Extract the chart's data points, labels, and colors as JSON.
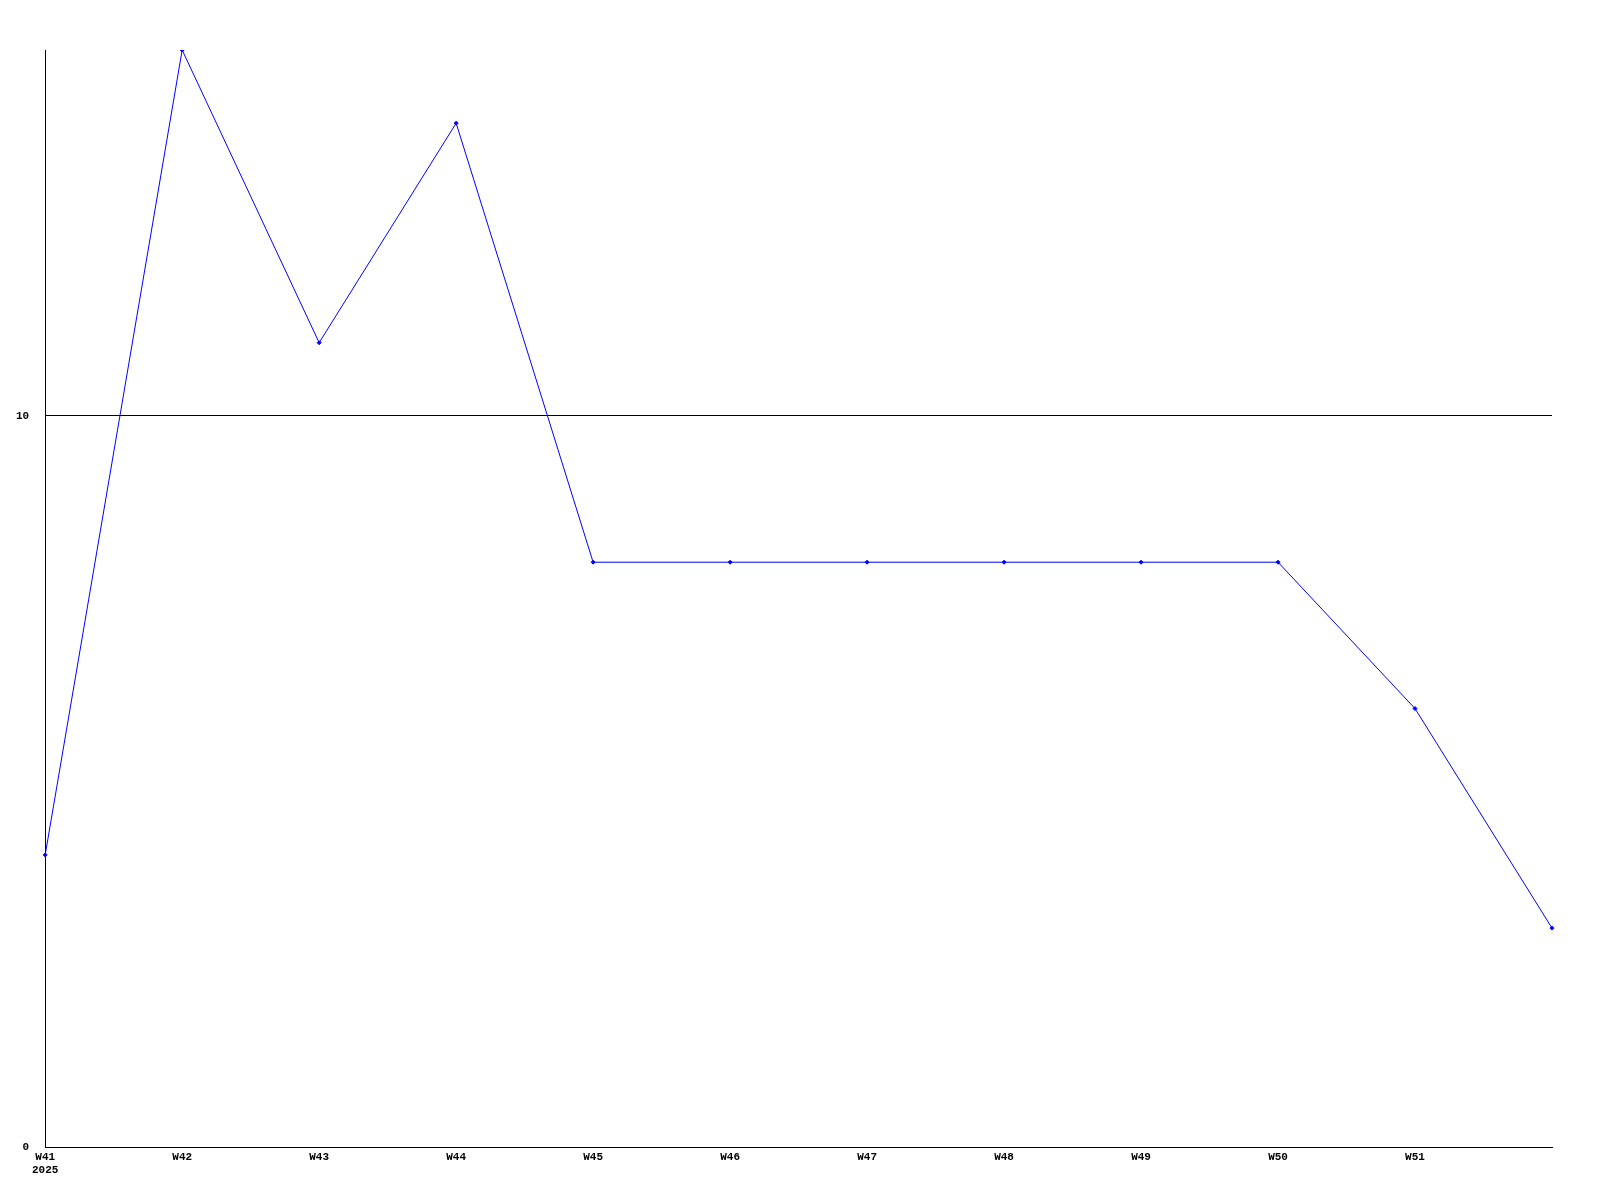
{
  "chart_data": {
    "type": "line",
    "categories": [
      "W41\n2025",
      "W42",
      "W43",
      "W44",
      "W45",
      "W46",
      "W47",
      "W48",
      "W49",
      "W50",
      "W51",
      null
    ],
    "series": [
      {
        "color": "#0000ff",
        "values": [
          4,
          15,
          11,
          14,
          8,
          8,
          8,
          8,
          8,
          8,
          6,
          3
        ]
      }
    ],
    "ylim": [
      0,
      15
    ],
    "yticks": [
      0,
      10
    ],
    "grid": "y",
    "legend": false,
    "marker": "diamond",
    "line_style": "solid"
  }
}
